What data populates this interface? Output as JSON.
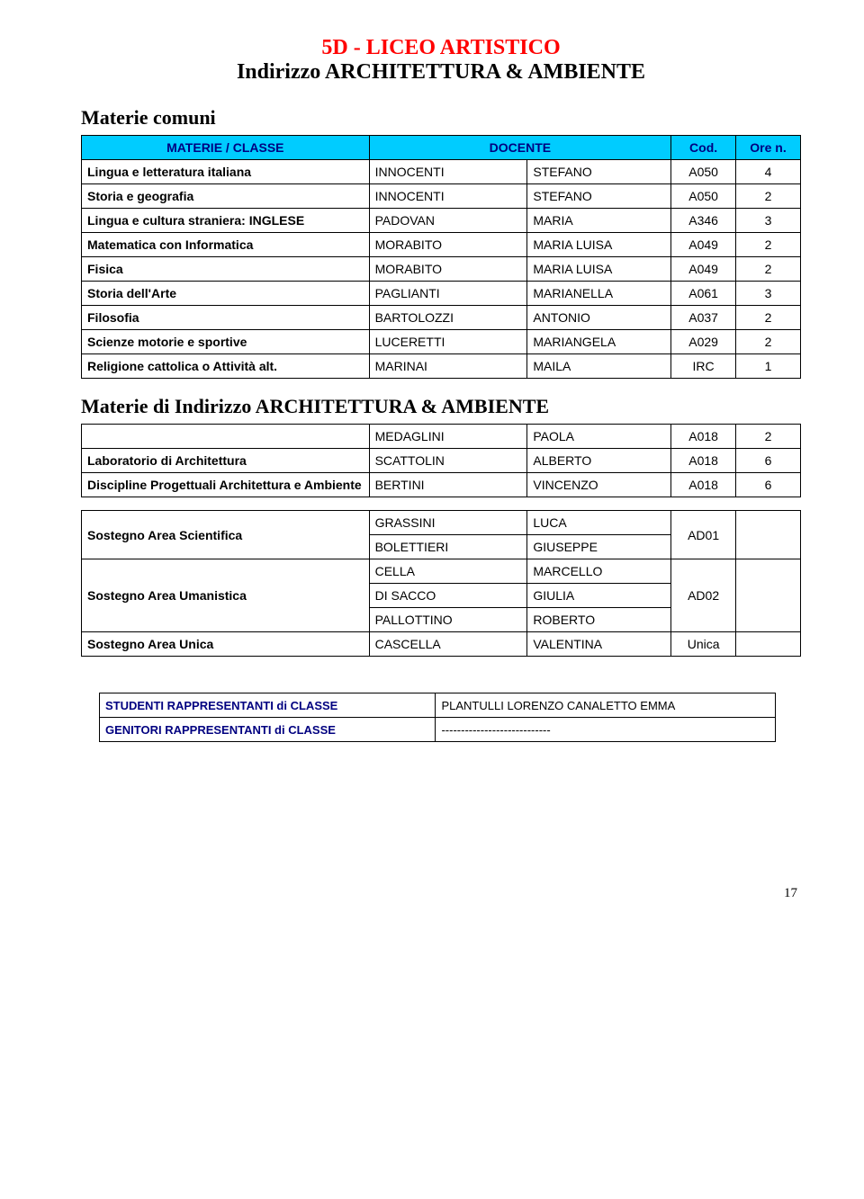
{
  "titles": {
    "line1": "5D  -  LICEO ARTISTICO",
    "line2": "Indirizzo ARCHITETTURA & AMBIENTE"
  },
  "section1": {
    "heading": "Materie comuni",
    "headers": {
      "materie": "MATERIE / CLASSE",
      "docente": "DOCENTE",
      "cod": "Cod.",
      "ore": "Ore n."
    },
    "rows": [
      {
        "materia": "Lingua e letteratura italiana",
        "surname": "INNOCENTI",
        "name": "STEFANO",
        "cod": "A050",
        "ore": "4"
      },
      {
        "materia": "Storia e geografia",
        "surname": "INNOCENTI",
        "name": "STEFANO",
        "cod": "A050",
        "ore": "2"
      },
      {
        "materia": "Lingua e cultura straniera: INGLESE",
        "surname": "PADOVAN",
        "name": "MARIA",
        "cod": "A346",
        "ore": "3"
      },
      {
        "materia": "Matematica con Informatica",
        "surname": "MORABITO",
        "name": "MARIA LUISA",
        "cod": "A049",
        "ore": "2"
      },
      {
        "materia": "Fisica",
        "surname": "MORABITO",
        "name": "MARIA LUISA",
        "cod": "A049",
        "ore": "2"
      },
      {
        "materia": "Storia dell'Arte",
        "surname": "PAGLIANTI",
        "name": "MARIANELLA",
        "cod": "A061",
        "ore": "3"
      },
      {
        "materia": "Filosofia",
        "surname": "BARTOLOZZI",
        "name": "ANTONIO",
        "cod": "A037",
        "ore": "2"
      },
      {
        "materia": "Scienze motorie e sportive",
        "surname": "LUCERETTI",
        "name": "MARIANGELA",
        "cod": "A029",
        "ore": "2"
      },
      {
        "materia": "Religione cattolica o Attività alt.",
        "surname": "MARINAI",
        "name": "MAILA",
        "cod": "IRC",
        "ore": "1"
      }
    ]
  },
  "section2": {
    "heading": "Materie di Indirizzo ARCHITETTURA & AMBIENTE",
    "rows": [
      {
        "materia": "",
        "surname": "MEDAGLINI",
        "name": "PAOLA",
        "cod": "A018",
        "ore": "2"
      },
      {
        "materia": "Laboratorio di Architettura",
        "surname": "SCATTOLIN",
        "name": "ALBERTO",
        "cod": "A018",
        "ore": "6"
      },
      {
        "materia": "Discipline Progettuali Architettura e Ambiente",
        "surname": "BERTINI",
        "name": "VINCENZO",
        "cod": "A018",
        "ore": "6"
      }
    ]
  },
  "section3": {
    "sci": {
      "label": "Sostegno Area Scientifica",
      "r1": {
        "surname": "GRASSINI",
        "name": "LUCA"
      },
      "r2": {
        "surname": "BOLETTIERI",
        "name": "GIUSEPPE"
      },
      "cod": "AD01"
    },
    "uma": {
      "label": "Sostegno Area Umanistica",
      "r1": {
        "surname": "CELLA",
        "name": "MARCELLO"
      },
      "r2": {
        "surname": "DI SACCO",
        "name": "GIULIA"
      },
      "r3": {
        "surname": "PALLOTTINO",
        "name": "ROBERTO"
      },
      "cod": "AD02"
    },
    "unica": {
      "label": "Sostegno Area Unica",
      "r1": {
        "surname": "CASCELLA",
        "name": "VALENTINA"
      },
      "cod": "Unica"
    }
  },
  "footer": {
    "row1": {
      "left": "STUDENTI RAPPRESENTANTI di CLASSE",
      "right": "PLANTULLI LORENZO CANALETTO EMMA"
    },
    "row2": {
      "left": "GENITORI RAPPRESENTANTI di CLASSE",
      "right": "----------------------------"
    }
  },
  "pagenum": "17"
}
